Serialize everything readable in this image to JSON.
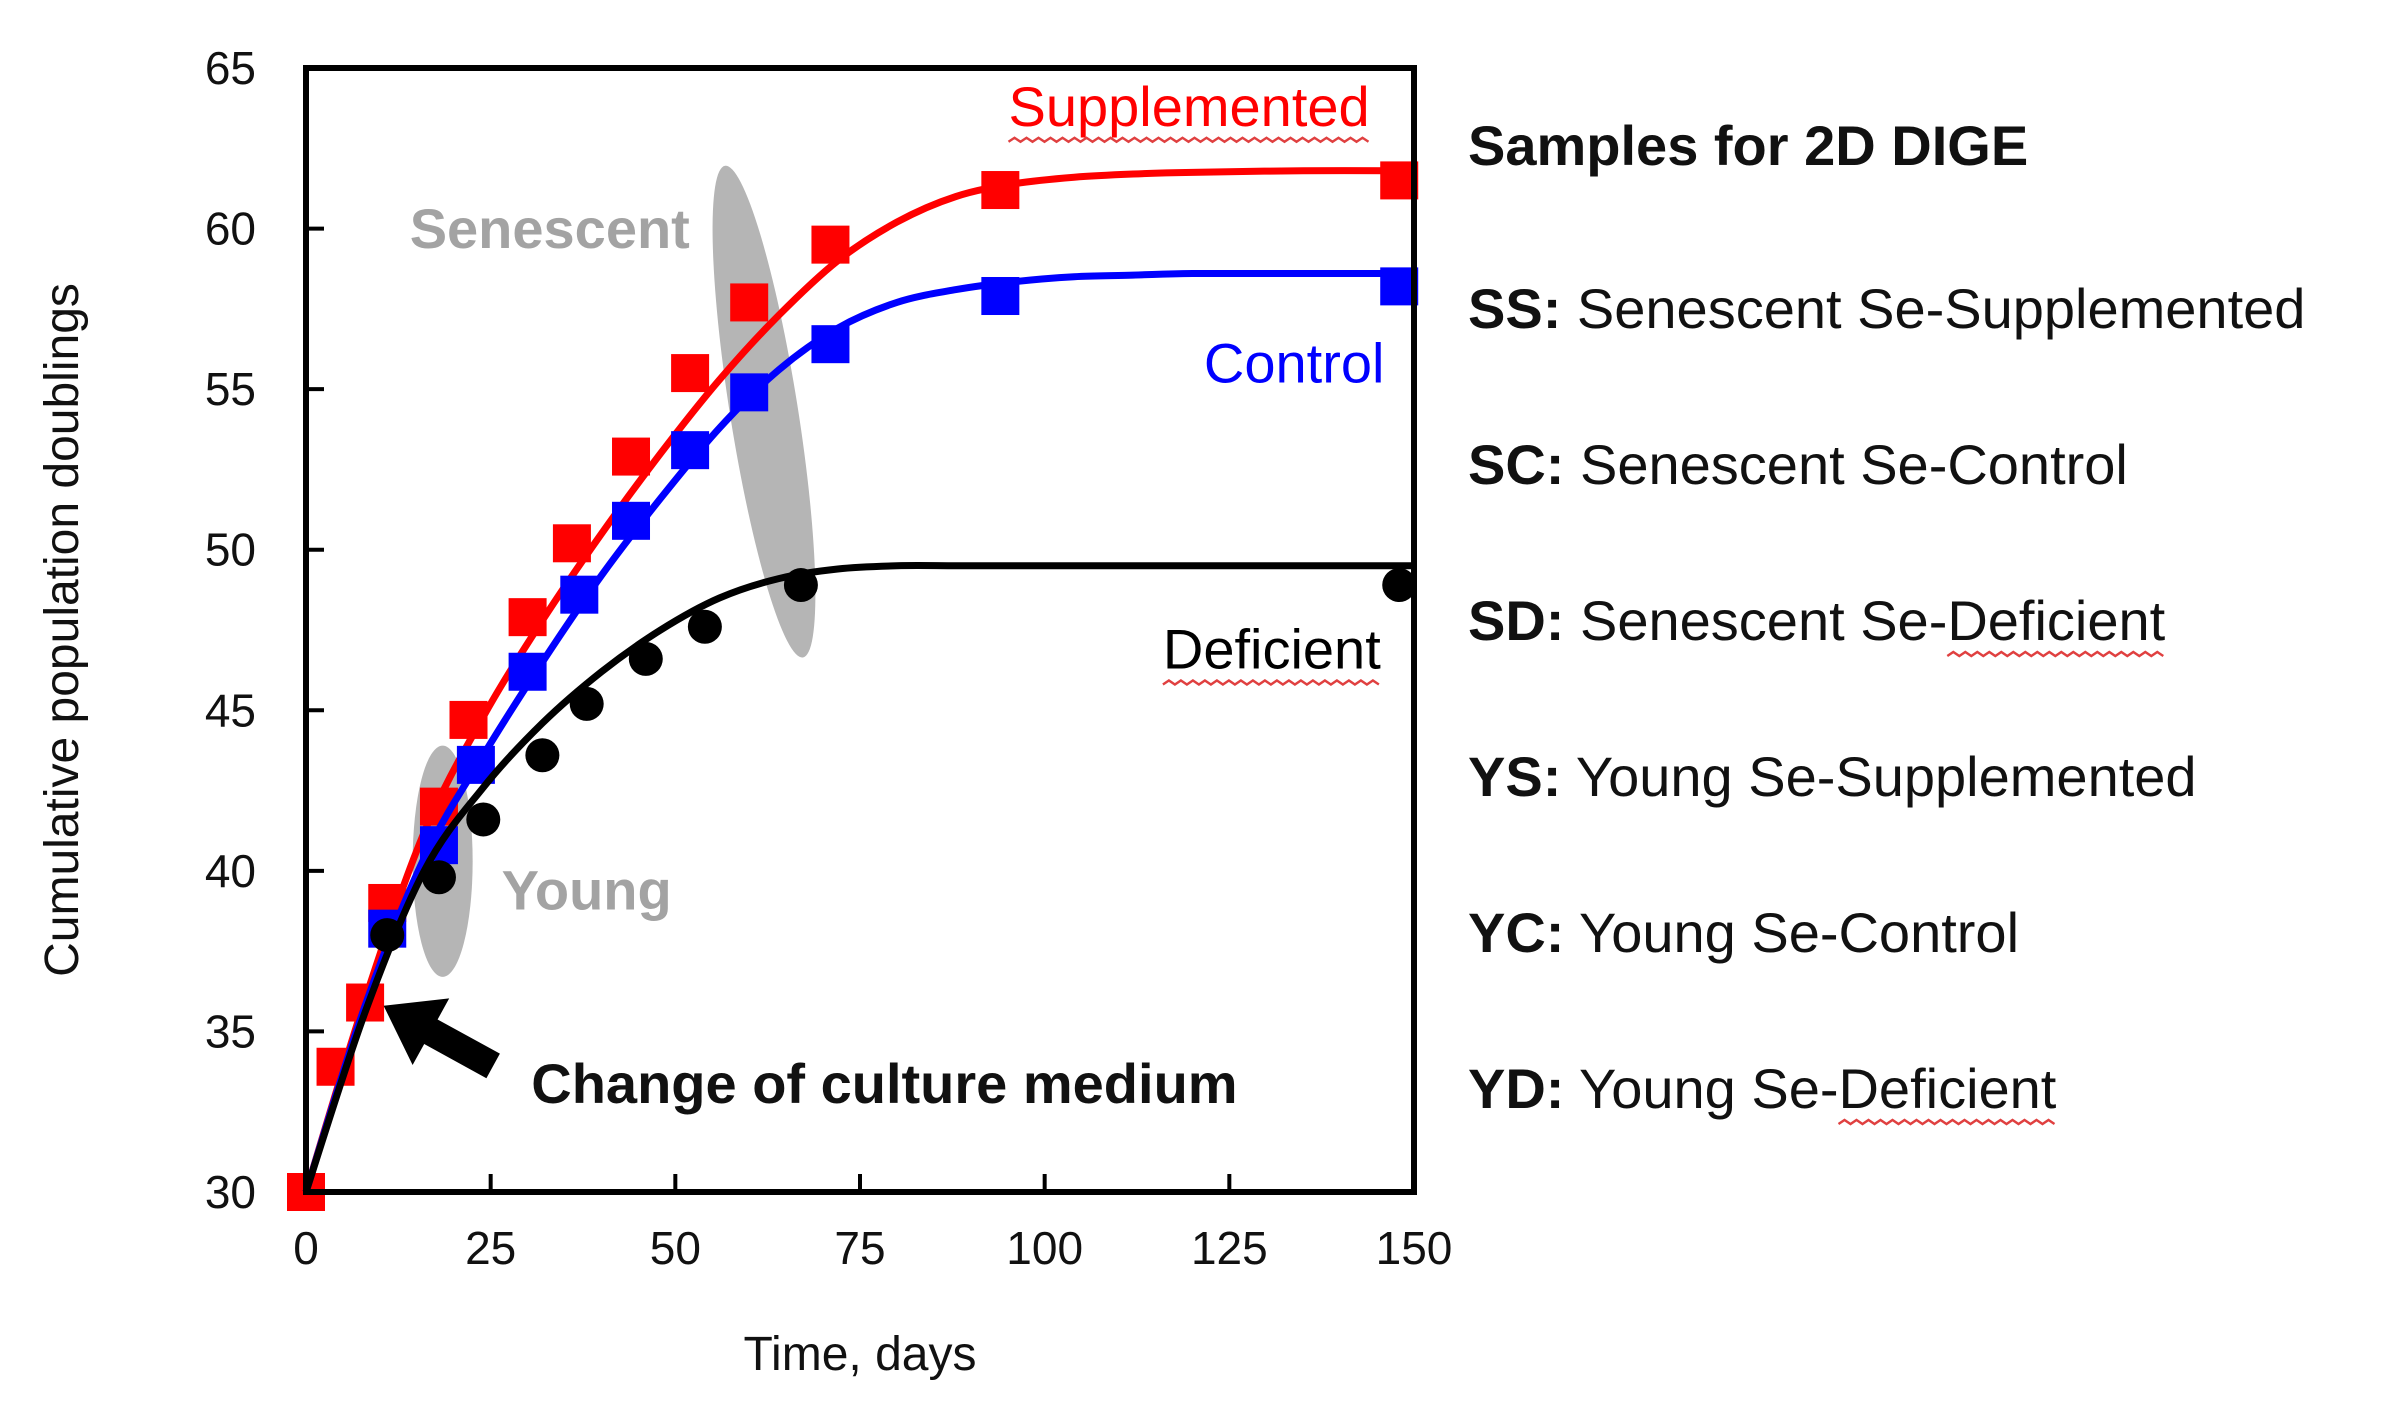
{
  "chart_data": {
    "type": "line",
    "title": "",
    "xlabel": "Time, days",
    "ylabel": "Cumulative population doublings",
    "xlim": [
      0,
      150
    ],
    "ylim": [
      30,
      65
    ],
    "x_ticks": [
      0,
      25,
      50,
      75,
      100,
      125,
      150
    ],
    "y_ticks": [
      30,
      35,
      40,
      45,
      50,
      55,
      60,
      65
    ],
    "grid": false,
    "series": [
      {
        "name": "Supplemented",
        "color": "#ff0000",
        "marker": "square",
        "x": [
          0,
          4,
          8,
          11,
          18,
          22,
          30,
          36,
          44,
          52,
          60,
          71,
          94,
          148
        ],
        "y": [
          30.0,
          33.9,
          35.9,
          39.0,
          42.0,
          44.7,
          47.9,
          50.2,
          52.9,
          55.5,
          57.7,
          59.5,
          61.2,
          61.5
        ],
        "fit_x": [
          0,
          8,
          16,
          24,
          32,
          40,
          48,
          56,
          64,
          72,
          80,
          88,
          96,
          104,
          112,
          120,
          135,
          150
        ],
        "fit_y": [
          30.0,
          36.0,
          41.2,
          44.8,
          47.8,
          50.5,
          53.0,
          55.3,
          57.3,
          59.0,
          60.2,
          61.0,
          61.4,
          61.6,
          61.7,
          61.75,
          61.8,
          61.8
        ]
      },
      {
        "name": "Control",
        "color": "#0000ff",
        "marker": "square",
        "x": [
          11,
          18,
          23,
          30,
          37,
          44,
          52,
          60,
          71,
          94,
          148
        ],
        "y": [
          38.2,
          40.8,
          43.3,
          46.2,
          48.6,
          50.9,
          53.1,
          54.9,
          56.4,
          57.9,
          58.2
        ],
        "fit_x": [
          0,
          8,
          16,
          24,
          32,
          40,
          48,
          56,
          64,
          72,
          80,
          88,
          96,
          104,
          112,
          120,
          135,
          150
        ],
        "fit_y": [
          30.0,
          35.8,
          40.4,
          43.6,
          46.5,
          49.2,
          51.6,
          53.8,
          55.6,
          56.9,
          57.7,
          58.1,
          58.35,
          58.5,
          58.55,
          58.6,
          58.6,
          58.6
        ]
      },
      {
        "name": "Deficient",
        "color": "#000000",
        "marker": "circle",
        "x": [
          11,
          18,
          24,
          32,
          38,
          46,
          54,
          67,
          148
        ],
        "y": [
          38.0,
          39.8,
          41.6,
          43.6,
          45.2,
          46.6,
          47.6,
          48.9,
          48.9
        ],
        "fit_x": [
          0,
          8,
          16,
          24,
          32,
          40,
          48,
          56,
          64,
          72,
          80,
          88,
          96,
          104,
          112,
          120,
          135,
          150
        ],
        "fit_y": [
          30.0,
          35.6,
          40.0,
          42.6,
          44.6,
          46.2,
          47.5,
          48.5,
          49.1,
          49.4,
          49.5,
          49.5,
          49.5,
          49.5,
          49.5,
          49.5,
          49.5,
          49.5
        ]
      }
    ],
    "series_labels": [
      "Supplemented",
      "Control",
      "Deficient"
    ],
    "annotations": {
      "senescent": "Senescent",
      "young": "Young",
      "arrow_text": "Change of culture medium"
    }
  },
  "legend": {
    "title": "Samples for 2D DIGE",
    "entries": [
      {
        "code": "SS:",
        "text": " Senescent Se-Supplemented"
      },
      {
        "code": "SC:",
        "text": " Senescent Se-Control"
      },
      {
        "code": "SD:",
        "text": " Senescent Se-Deficient"
      },
      {
        "code": "YS:",
        "text": " Young Se-Supplemented"
      },
      {
        "code": "YC:",
        "text": " Young Se-Control"
      },
      {
        "code": "YD:",
        "text": " Young Se-Deficient"
      }
    ]
  },
  "colors": {
    "supplemented": "#ff0000",
    "control": "#0000ff",
    "deficient": "#000000",
    "highlight": "#b5b5b5",
    "group_text": "#a3a3a3",
    "spellcheck": "#e04040"
  }
}
